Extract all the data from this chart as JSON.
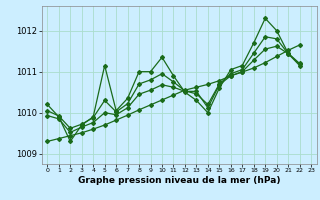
{
  "xlabel": "Graphe pression niveau de la mer (hPa)",
  "background_color": "#cceeff",
  "grid_color": "#aaddcc",
  "line_color": "#1a6b1a",
  "ylim": [
    1008.75,
    1012.6
  ],
  "yticks": [
    1009,
    1010,
    1011,
    1012
  ],
  "xticks": [
    0,
    1,
    2,
    3,
    4,
    5,
    6,
    7,
    8,
    9,
    10,
    11,
    12,
    13,
    14,
    15,
    16,
    17,
    18,
    19,
    20,
    21,
    22,
    23
  ],
  "y_main": [
    1010.2,
    1009.9,
    1009.3,
    1009.7,
    1009.9,
    1011.15,
    1010.05,
    1010.35,
    1011.0,
    1011.0,
    1011.35,
    1010.9,
    1010.5,
    1010.3,
    1010.0,
    1010.6,
    1011.05,
    1011.15,
    1011.7,
    1012.3,
    1012.0,
    1011.45,
    1011.2,
    null
  ],
  "y_trend": [
    1009.3,
    1009.37,
    1009.44,
    1009.51,
    1009.6,
    1009.7,
    1009.82,
    1009.94,
    1010.07,
    1010.19,
    1010.31,
    1010.43,
    1010.55,
    1010.62,
    1010.69,
    1010.78,
    1010.9,
    1010.99,
    1011.09,
    1011.22,
    1011.37,
    1011.52,
    1011.65,
    null
  ],
  "y_mid": [
    1010.05,
    1009.92,
    1009.62,
    1009.72,
    1009.88,
    1010.3,
    1010.02,
    1010.22,
    1010.7,
    1010.8,
    1010.95,
    1010.75,
    1010.53,
    1010.46,
    1010.2,
    1010.7,
    1010.95,
    1011.05,
    1011.45,
    1011.85,
    1011.8,
    1011.44,
    1011.18,
    null
  ],
  "y_line4": [
    1009.93,
    1009.85,
    1009.52,
    1009.65,
    1009.76,
    1010.0,
    1009.95,
    1010.12,
    1010.45,
    1010.55,
    1010.68,
    1010.62,
    1010.52,
    1010.52,
    1010.12,
    1010.68,
    1010.9,
    1011.0,
    1011.28,
    1011.55,
    1011.62,
    1011.44,
    1011.15,
    null
  ]
}
